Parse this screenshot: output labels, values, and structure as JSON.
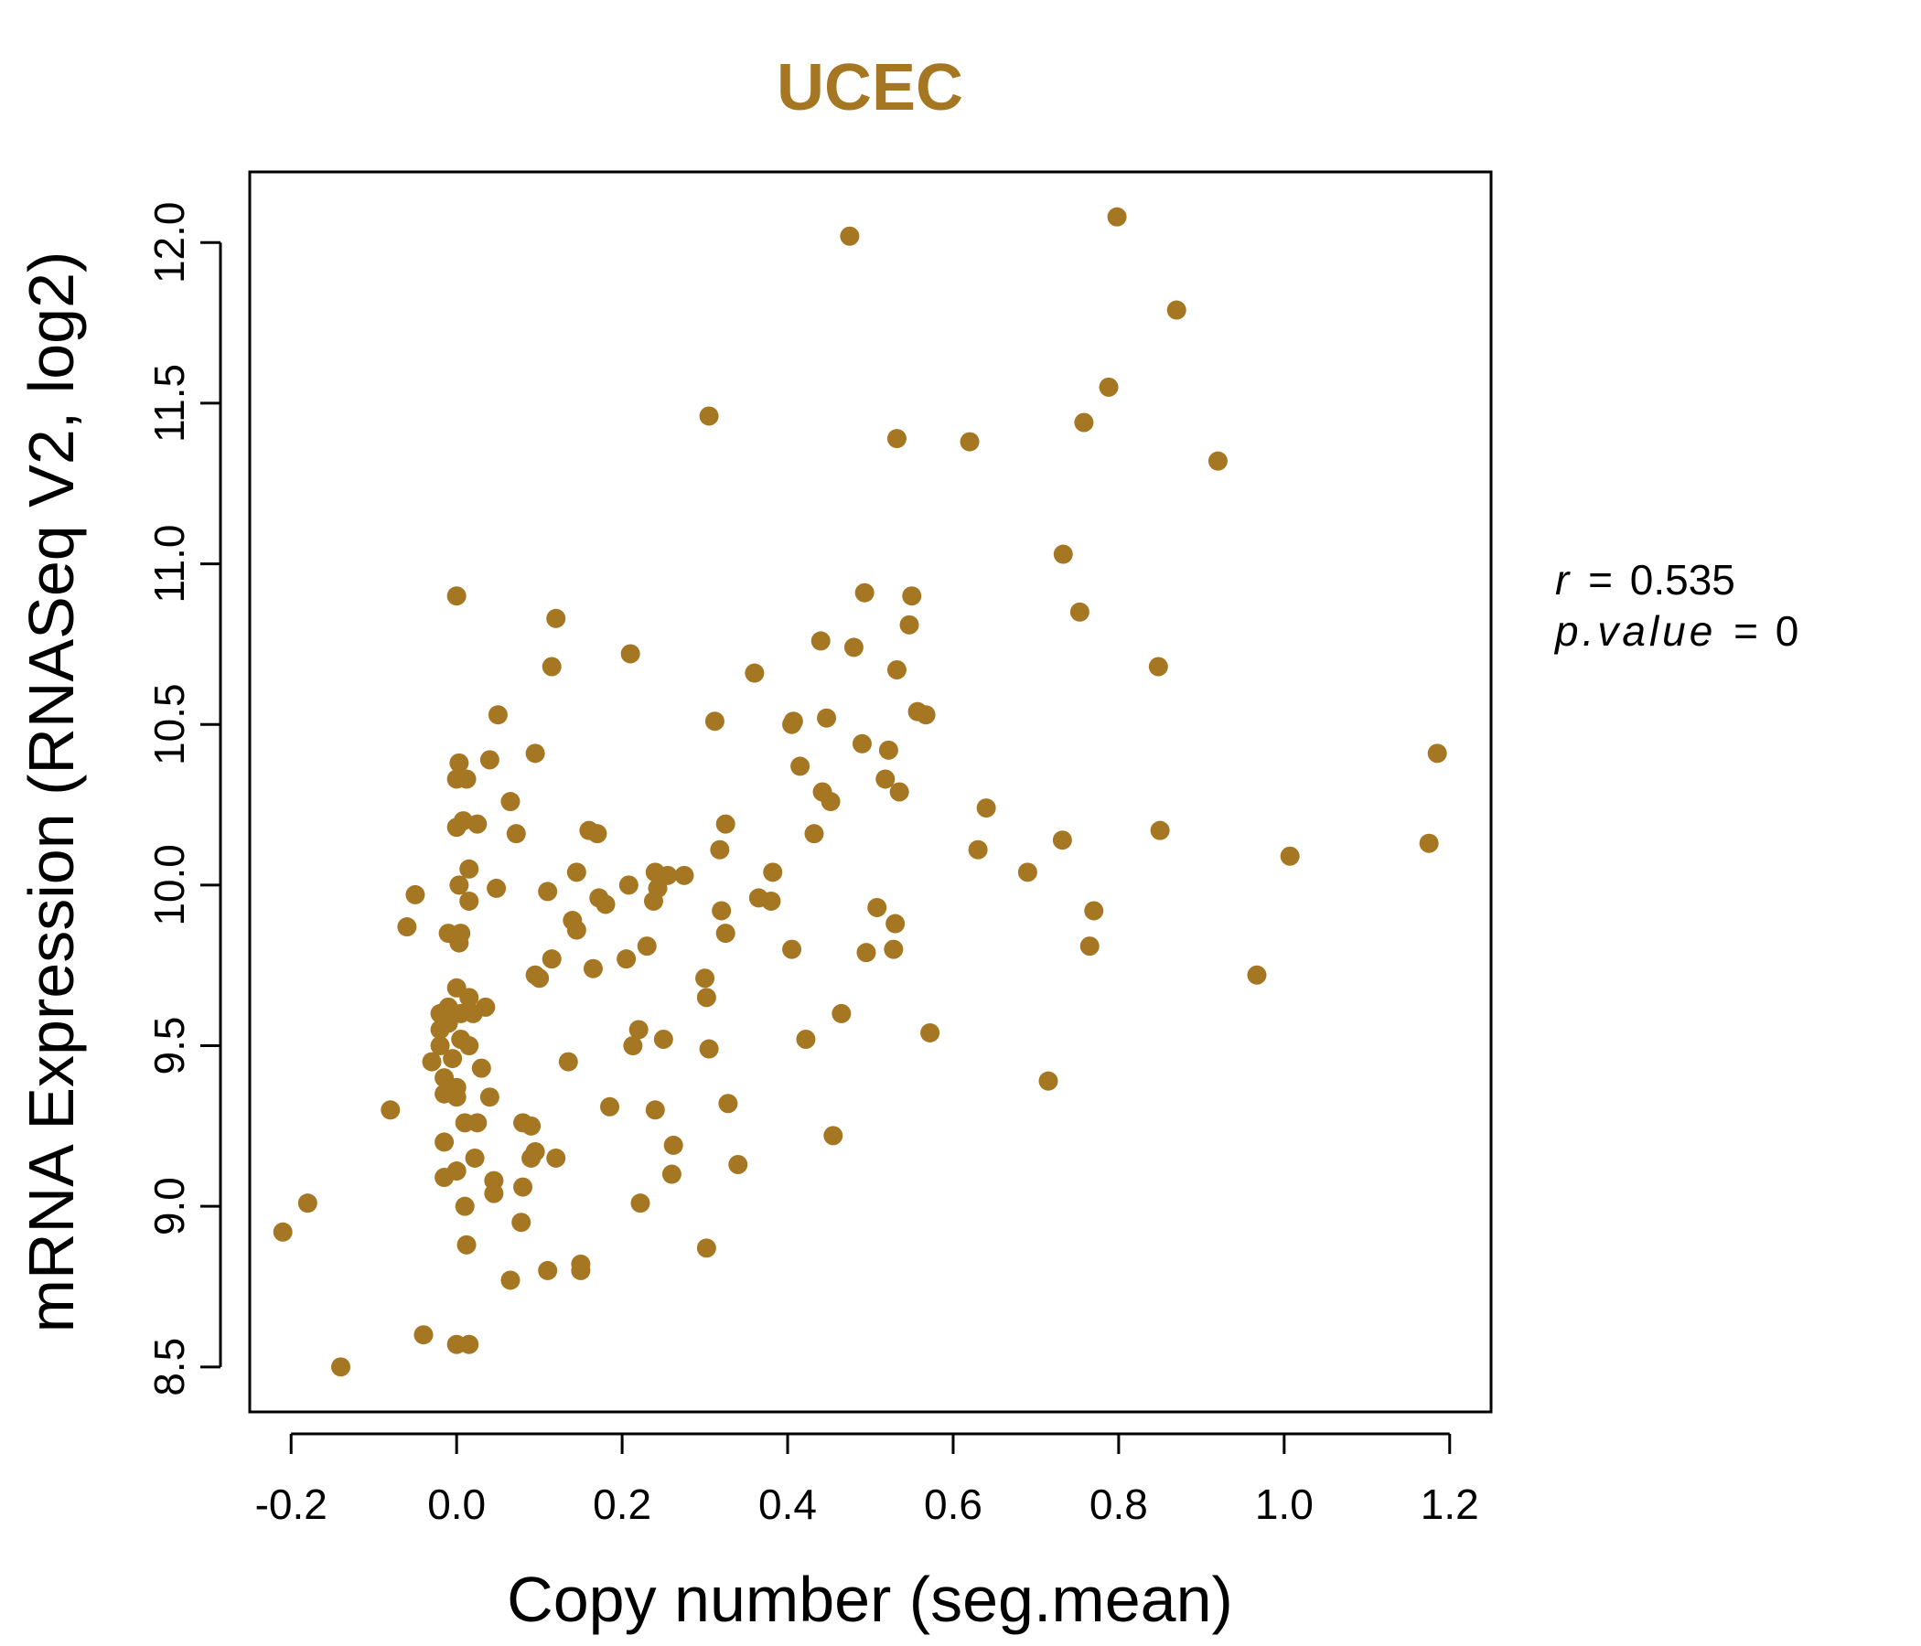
{
  "chart_data": {
    "type": "scatter",
    "title": "UCEC",
    "xlabel": "Copy number (seg.mean)",
    "ylabel": "mRNA Expression (RNASeq V2, log2)",
    "xlim": [
      -0.25,
      1.25
    ],
    "ylim": [
      8.36,
      12.22
    ],
    "x_ticks": [
      "-0.2",
      "0.0",
      "0.2",
      "0.4",
      "0.6",
      "0.8",
      "1.0",
      "1.2"
    ],
    "y_ticks": [
      "8.5",
      "9.0",
      "9.5",
      "10.0",
      "10.5",
      "11.0",
      "11.5",
      "12.0"
    ],
    "grid": false,
    "legend": "none",
    "point_color": "#A67723",
    "stats": {
      "r_label": "r",
      "r_value": "0.535",
      "p_label": "p.value",
      "p_value": "0"
    },
    "points": [
      [
        -0.21,
        8.92
      ],
      [
        -0.18,
        9.01
      ],
      [
        -0.14,
        8.5
      ],
      [
        -0.08,
        9.3
      ],
      [
        -0.06,
        9.87
      ],
      [
        -0.05,
        9.97
      ],
      [
        -0.04,
        8.6
      ],
      [
        -0.03,
        9.45
      ],
      [
        -0.02,
        9.6
      ],
      [
        -0.02,
        9.55
      ],
      [
        -0.02,
        9.5
      ],
      [
        -0.015,
        9.4
      ],
      [
        -0.015,
        9.35
      ],
      [
        -0.015,
        9.2
      ],
      [
        -0.015,
        9.09
      ],
      [
        -0.01,
        9.85
      ],
      [
        -0.01,
        9.62
      ],
      [
        -0.01,
        9.57
      ],
      [
        -0.005,
        9.46
      ],
      [
        0.0,
        10.33
      ],
      [
        0.0,
        10.18
      ],
      [
        0.0,
        9.68
      ],
      [
        0.0,
        9.37
      ],
      [
        0.0,
        9.34
      ],
      [
        0.0,
        9.11
      ],
      [
        0.0,
        8.57
      ],
      [
        0.0,
        10.9
      ],
      [
        0.003,
        10.38
      ],
      [
        0.003,
        10.0
      ],
      [
        0.003,
        9.82
      ],
      [
        0.005,
        9.85
      ],
      [
        0.005,
        9.6
      ],
      [
        0.005,
        9.52
      ],
      [
        0.008,
        10.2
      ],
      [
        0.01,
        9.26
      ],
      [
        0.01,
        9.0
      ],
      [
        0.012,
        10.33
      ],
      [
        0.012,
        8.88
      ],
      [
        0.015,
        10.05
      ],
      [
        0.015,
        9.95
      ],
      [
        0.015,
        9.65
      ],
      [
        0.015,
        9.5
      ],
      [
        0.015,
        8.57
      ],
      [
        0.02,
        9.6
      ],
      [
        0.022,
        9.15
      ],
      [
        0.025,
        9.26
      ],
      [
        0.025,
        10.19
      ],
      [
        0.03,
        9.43
      ],
      [
        0.035,
        9.62
      ],
      [
        0.04,
        10.39
      ],
      [
        0.04,
        9.34
      ],
      [
        0.045,
        9.08
      ],
      [
        0.045,
        9.04
      ],
      [
        0.048,
        9.99
      ],
      [
        0.05,
        10.53
      ],
      [
        0.065,
        10.26
      ],
      [
        0.065,
        8.77
      ],
      [
        0.072,
        10.16
      ],
      [
        0.078,
        8.95
      ],
      [
        0.08,
        9.26
      ],
      [
        0.08,
        9.06
      ],
      [
        0.09,
        9.25
      ],
      [
        0.09,
        9.15
      ],
      [
        0.095,
        9.17
      ],
      [
        0.095,
        10.41
      ],
      [
        0.095,
        9.72
      ],
      [
        0.1,
        9.71
      ],
      [
        0.11,
        9.98
      ],
      [
        0.11,
        8.8
      ],
      [
        0.115,
        10.68
      ],
      [
        0.115,
        9.77
      ],
      [
        0.12,
        10.83
      ],
      [
        0.12,
        9.15
      ],
      [
        0.135,
        9.45
      ],
      [
        0.14,
        9.89
      ],
      [
        0.145,
        9.86
      ],
      [
        0.145,
        10.04
      ],
      [
        0.15,
        8.82
      ],
      [
        0.15,
        8.8
      ],
      [
        0.16,
        10.17
      ],
      [
        0.165,
        9.74
      ],
      [
        0.17,
        10.16
      ],
      [
        0.172,
        9.96
      ],
      [
        0.18,
        9.94
      ],
      [
        0.185,
        9.31
      ],
      [
        0.205,
        9.77
      ],
      [
        0.208,
        10.0
      ],
      [
        0.21,
        10.72
      ],
      [
        0.213,
        9.5
      ],
      [
        0.22,
        9.55
      ],
      [
        0.222,
        9.01
      ],
      [
        0.23,
        9.81
      ],
      [
        0.238,
        9.95
      ],
      [
        0.24,
        9.3
      ],
      [
        0.24,
        10.04
      ],
      [
        0.243,
        9.99
      ],
      [
        0.25,
        9.52
      ],
      [
        0.255,
        10.03
      ],
      [
        0.26,
        9.1
      ],
      [
        0.262,
        9.19
      ],
      [
        0.275,
        10.03
      ],
      [
        0.3,
        9.71
      ],
      [
        0.302,
        9.65
      ],
      [
        0.302,
        8.87
      ],
      [
        0.305,
        9.49
      ],
      [
        0.305,
        11.46
      ],
      [
        0.312,
        10.51
      ],
      [
        0.318,
        10.11
      ],
      [
        0.32,
        9.92
      ],
      [
        0.325,
        10.19
      ],
      [
        0.325,
        9.85
      ],
      [
        0.328,
        9.32
      ],
      [
        0.34,
        9.13
      ],
      [
        0.36,
        10.66
      ],
      [
        0.365,
        9.96
      ],
      [
        0.38,
        9.95
      ],
      [
        0.382,
        10.04
      ],
      [
        0.405,
        10.5
      ],
      [
        0.407,
        10.51
      ],
      [
        0.405,
        9.8
      ],
      [
        0.415,
        10.37
      ],
      [
        0.422,
        9.52
      ],
      [
        0.432,
        10.16
      ],
      [
        0.44,
        10.76
      ],
      [
        0.442,
        10.29
      ],
      [
        0.447,
        10.52
      ],
      [
        0.452,
        10.26
      ],
      [
        0.455,
        9.22
      ],
      [
        0.465,
        9.6
      ],
      [
        0.475,
        12.02
      ],
      [
        0.48,
        10.74
      ],
      [
        0.49,
        10.44
      ],
      [
        0.493,
        10.91
      ],
      [
        0.495,
        9.79
      ],
      [
        0.508,
        9.93
      ],
      [
        0.518,
        10.33
      ],
      [
        0.522,
        10.42
      ],
      [
        0.528,
        9.8
      ],
      [
        0.53,
        9.88
      ],
      [
        0.532,
        10.67
      ],
      [
        0.532,
        11.39
      ],
      [
        0.535,
        10.29
      ],
      [
        0.547,
        10.81
      ],
      [
        0.55,
        10.9
      ],
      [
        0.557,
        10.54
      ],
      [
        0.567,
        10.53
      ],
      [
        0.572,
        9.54
      ],
      [
        0.62,
        11.38
      ],
      [
        0.63,
        10.11
      ],
      [
        0.64,
        10.24
      ],
      [
        0.69,
        10.04
      ],
      [
        0.715,
        9.39
      ],
      [
        0.732,
        10.14
      ],
      [
        0.733,
        11.03
      ],
      [
        0.753,
        10.85
      ],
      [
        0.758,
        11.44
      ],
      [
        0.765,
        9.81
      ],
      [
        0.77,
        9.92
      ],
      [
        0.788,
        11.55
      ],
      [
        0.798,
        12.08
      ],
      [
        0.848,
        10.68
      ],
      [
        0.85,
        10.17
      ],
      [
        0.87,
        11.79
      ],
      [
        0.92,
        11.32
      ],
      [
        0.967,
        9.72
      ],
      [
        1.007,
        10.09
      ],
      [
        1.175,
        10.13
      ],
      [
        1.185,
        10.41
      ]
    ]
  }
}
